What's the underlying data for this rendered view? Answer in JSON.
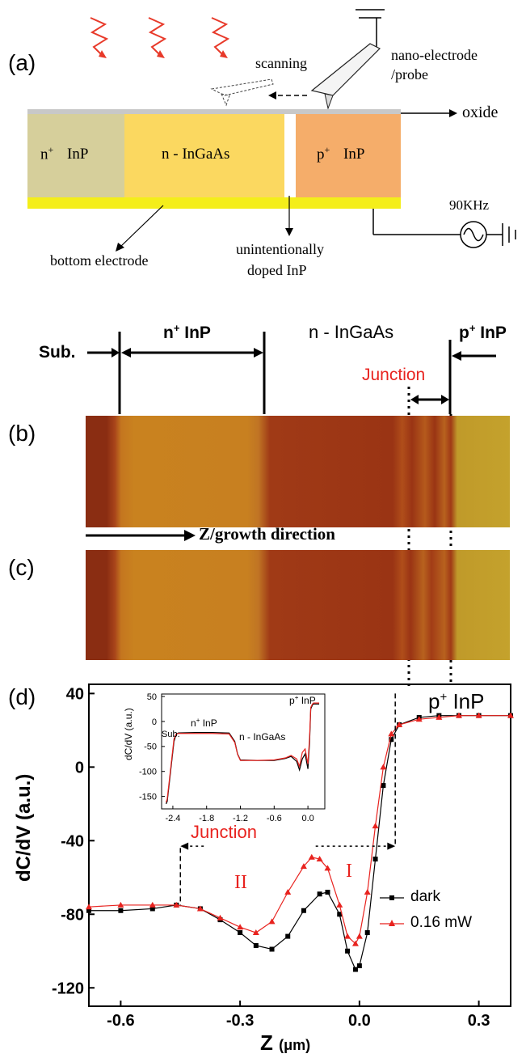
{
  "panels": {
    "a": {
      "label": "(a)",
      "scanning": "scanning",
      "probe_line1": "nano-electrode",
      "probe_line2": "/probe",
      "oxide": "oxide",
      "region_n_plus": "n",
      "region_n_plus_sup": "+",
      "region_n_plus_mat": "InP",
      "region_n": "n - InGaAs",
      "region_p_plus": "p",
      "region_p_plus_sup": "+",
      "region_p_plus_mat": "InP",
      "frequency": "90KHz",
      "bottom_electrode": "bottom electrode",
      "undoped_line1": "unintentionally",
      "undoped_line2": "doped InP",
      "colors": {
        "n_plus": "#d6cf9b",
        "n_ingaas": "#fbd860",
        "p_plus": "#f5ad6a",
        "electrode": "#f4ee1a",
        "oxide": "#c8c8c8",
        "light": "#e83a2a"
      }
    },
    "header": {
      "sub": "Sub.",
      "n_plus": "n",
      "n_plus_sup": "+",
      "n_plus_mat": " InP",
      "n_ingaas": "n - InGaAs",
      "p_plus": "p",
      "p_plus_sup": "+",
      "p_plus_mat": " InP",
      "junction": "Junction"
    },
    "b": {
      "label": "(b)"
    },
    "c": {
      "label": "(c)"
    },
    "growth": "Z/growth direction",
    "d": {
      "label": "(d)",
      "ylabel": "dC/dV (a.u.)",
      "xlabel": "Z",
      "xunit": "(μm)",
      "p_plus_label": "p",
      "p_plus_sup": "+",
      "p_plus_mat": " InP",
      "junction": "Junction",
      "region_I": "I",
      "region_II": "II",
      "legend_dark": "dark",
      "legend_light": "0.16 mW",
      "inset": {
        "ylabel": "dC/dV (a.u.)",
        "sub": "Sub.",
        "n_plus": "n",
        "n_plus_sup": "+",
        "n_plus_mat": " InP",
        "n_ingaas": "n - InGaAs",
        "p_plus": "p",
        "p_plus_sup": "+",
        "p_plus_mat": " InP"
      }
    }
  },
  "chart_data": [
    {
      "type": "line",
      "xlabel": "Z (μm)",
      "ylabel": "dC/dV (a.u.)",
      "xlim": [
        -0.68,
        0.38
      ],
      "ylim": [
        -130,
        45
      ],
      "xticks": [
        -0.6,
        -0.3,
        0.0,
        0.3
      ],
      "yticks": [
        -120,
        -80,
        -40,
        0,
        40
      ],
      "legend": "right",
      "series": [
        {
          "name": "dark",
          "color": "#000000",
          "marker": "square",
          "x": [
            -0.68,
            -0.6,
            -0.52,
            -0.46,
            -0.4,
            -0.35,
            -0.3,
            -0.26,
            -0.22,
            -0.18,
            -0.14,
            -0.1,
            -0.08,
            -0.05,
            -0.03,
            -0.01,
            0.0,
            0.02,
            0.04,
            0.06,
            0.08,
            0.1,
            0.15,
            0.2,
            0.25,
            0.3,
            0.38
          ],
          "y": [
            -78,
            -78,
            -77,
            -75,
            -77,
            -83,
            -90,
            -97,
            -99,
            -92,
            -78,
            -69,
            -68,
            -80,
            -100,
            -110,
            -108,
            -90,
            -50,
            -10,
            15,
            23,
            27,
            28,
            28,
            28,
            28
          ]
        },
        {
          "name": "0.16 mW",
          "color": "#e8231f",
          "marker": "triangle",
          "x": [
            -0.68,
            -0.6,
            -0.52,
            -0.46,
            -0.4,
            -0.35,
            -0.3,
            -0.26,
            -0.22,
            -0.18,
            -0.14,
            -0.12,
            -0.1,
            -0.08,
            -0.05,
            -0.03,
            -0.01,
            0.0,
            0.02,
            0.04,
            0.06,
            0.08,
            0.1,
            0.15,
            0.2,
            0.25,
            0.3,
            0.38
          ],
          "y": [
            -76,
            -75,
            -75,
            -75,
            -77,
            -82,
            -87,
            -90,
            -84,
            -68,
            -54,
            -49,
            -50,
            -55,
            -75,
            -92,
            -96,
            -92,
            -68,
            -32,
            0,
            18,
            23,
            26,
            27,
            28,
            28,
            28
          ]
        }
      ],
      "annotations": [
        "p+ InP",
        "Junction",
        "I",
        "II"
      ]
    },
    {
      "type": "line",
      "xlabel": "",
      "ylabel": "dC/dV (a.u.)",
      "xlim": [
        -2.6,
        0.3
      ],
      "ylim": [
        -175,
        55
      ],
      "xticks": [
        -2.4,
        -1.8,
        -1.2,
        -0.6,
        0.0
      ],
      "yticks": [
        -150,
        -100,
        -50,
        0,
        50
      ],
      "series": [
        {
          "name": "dark",
          "color": "#000000",
          "x": [
            -2.52,
            -2.5,
            -2.46,
            -2.42,
            -2.38,
            -2.34,
            -2.3,
            -2.0,
            -1.7,
            -1.4,
            -1.3,
            -1.25,
            -1.2,
            -0.9,
            -0.6,
            -0.4,
            -0.3,
            -0.2,
            -0.15,
            -0.1,
            -0.05,
            0.0,
            0.03,
            0.05,
            0.08,
            0.1,
            0.2
          ],
          "y": [
            -165,
            -160,
            -120,
            -80,
            -40,
            -25,
            -23,
            -22,
            -22,
            -23,
            -40,
            -65,
            -77,
            -78,
            -78,
            -74,
            -70,
            -80,
            -97,
            -75,
            -65,
            -95,
            -40,
            25,
            33,
            35,
            35
          ]
        },
        {
          "name": "0.16 mW",
          "color": "#e8231f",
          "x": [
            -2.52,
            -2.5,
            -2.46,
            -2.42,
            -2.38,
            -2.34,
            -2.3,
            -2.0,
            -1.7,
            -1.4,
            -1.3,
            -1.25,
            -1.2,
            -0.9,
            -0.6,
            -0.4,
            -0.3,
            -0.2,
            -0.15,
            -0.1,
            -0.05,
            0.0,
            0.03,
            0.05,
            0.08,
            0.1,
            0.2
          ],
          "y": [
            -162,
            -155,
            -115,
            -75,
            -35,
            -25,
            -24,
            -24,
            -24,
            -25,
            -42,
            -66,
            -78,
            -78,
            -77,
            -73,
            -68,
            -75,
            -90,
            -62,
            -55,
            -85,
            -30,
            28,
            35,
            37,
            37
          ]
        }
      ]
    }
  ]
}
